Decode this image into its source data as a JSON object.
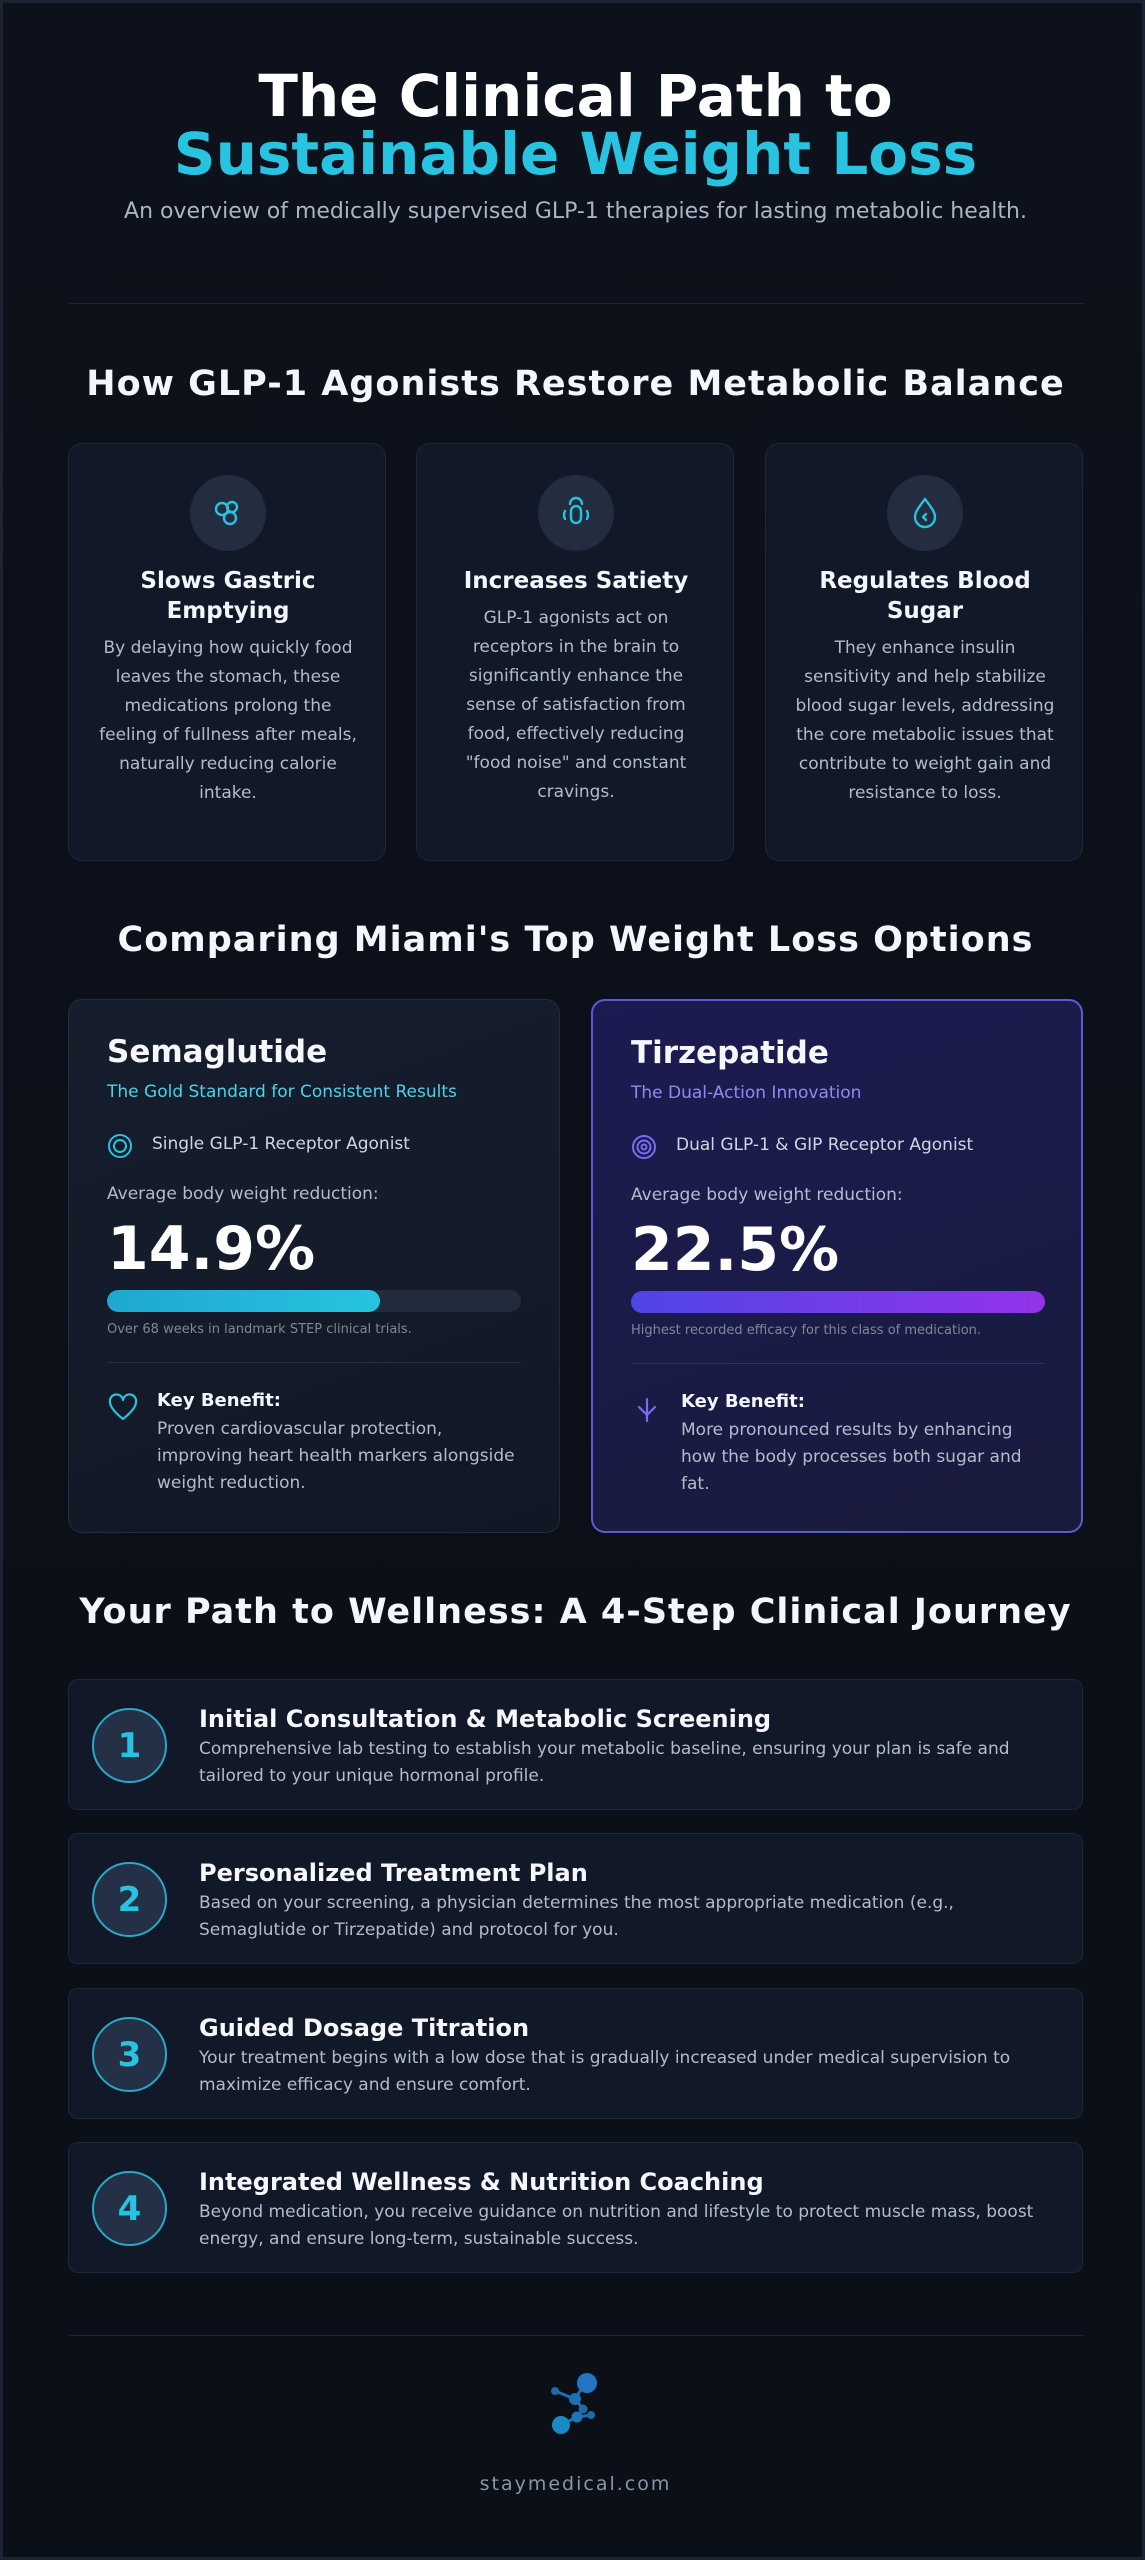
{
  "header": {
    "title_line1": "The Clinical Path to",
    "title_line2": "Sustainable Weight Loss",
    "subtitle": "An overview of medically supervised GLP-1 therapies for lasting metabolic health."
  },
  "mechanism": {
    "heading": "How GLP-1 Agonists Restore Metabolic Balance",
    "cards": [
      {
        "icon": "stomach-icon",
        "title": "Slows Gastric Emptying",
        "body": "By delaying how quickly food leaves the stomach, these medications prolong the feeling of fullness after meals, naturally reducing calorie intake."
      },
      {
        "icon": "brain-signal-icon",
        "title": "Increases Satiety",
        "body": "GLP-1 agonists act on receptors in the brain to significantly enhance the sense of satisfaction from food, effectively reducing \"food noise\" and constant cravings."
      },
      {
        "icon": "blood-drop-icon",
        "title": "Regulates Blood Sugar",
        "body": "They enhance insulin sensitivity and help stabilize blood sugar levels, addressing the core metabolic issues that contribute to weight gain and resistance to loss."
      }
    ]
  },
  "comparison": {
    "heading": "Comparing Miami's Top Weight Loss Options",
    "options": [
      {
        "name": "Semaglutide",
        "tagline": "The Gold Standard for Consistent Results",
        "mechanism": "Single GLP-1 Receptor Agonist",
        "avg_label": "Average body weight reduction:",
        "stat": "14.9%",
        "progress_fraction": 0.66,
        "note": "Over 68 weeks in landmark STEP clinical trials.",
        "benefit_heading": "Key Benefit:",
        "benefit": "Proven cardiovascular protection, improving heart health markers alongside weight reduction.",
        "accent": "#27c3e0",
        "tag_color": "#4fd1e8",
        "fill_from": "#1ea8cf",
        "fill_to": "#27c3e0"
      },
      {
        "name": "Tirzepatide",
        "tagline": "The Dual-Action Innovation",
        "mechanism": "Dual GLP-1 & GIP Receptor Agonist",
        "avg_label": "Average body weight reduction:",
        "stat": "22.5%",
        "progress_fraction": 1.0,
        "note": "Highest recorded efficacy for this class of medication.",
        "benefit_heading": "Key Benefit:",
        "benefit": "More pronounced results by enhancing how the body processes both sugar and fat.",
        "accent": "#7a6cf0",
        "tag_color": "#8c8df0",
        "fill_from": "#4f46e5",
        "fill_to": "#9333ea"
      }
    ]
  },
  "journey": {
    "heading": "Your Path to Wellness: A 4-Step Clinical Journey",
    "steps": [
      {
        "number": "1",
        "title": "Initial Consultation & Metabolic Screening",
        "desc": "Comprehensive lab testing to establish your metabolic baseline, ensuring your plan is safe and tailored to your unique hormonal profile."
      },
      {
        "number": "2",
        "title": "Personalized Treatment Plan",
        "desc": "Based on your screening, a physician determines the most appropriate medication (e.g., Semaglutide or Tirzepatide) and protocol for you."
      },
      {
        "number": "3",
        "title": "Guided Dosage Titration",
        "desc": "Your treatment begins with a low dose that is gradually increased under medical supervision to maximize efficacy and ensure comfort."
      },
      {
        "number": "4",
        "title": "Integrated Wellness & Nutrition Coaching",
        "desc": "Beyond medication, you receive guidance on nutrition and lifestyle to protect muscle mass, boost energy, and ensure long-term, sustainable success."
      }
    ]
  },
  "footer": {
    "logo_icon": "molecule-logo-icon",
    "site": "staymedical.com"
  }
}
